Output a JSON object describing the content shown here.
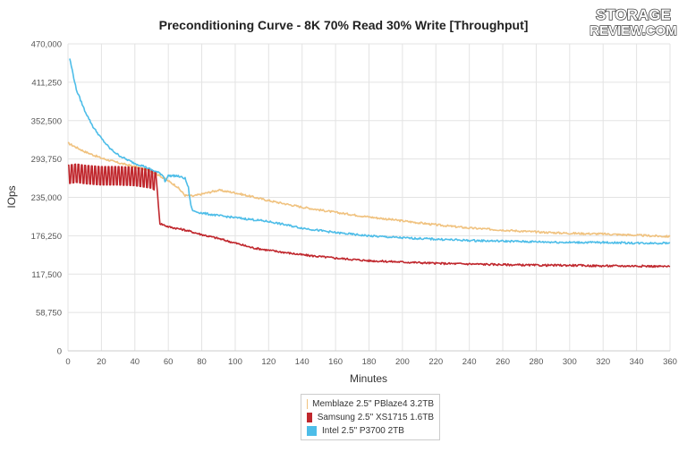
{
  "logo": {
    "text_top": "STORAGE",
    "text_bottom": "REVIEW.COM"
  },
  "chart_data": {
    "type": "line",
    "title": "Preconditioning Curve - 8K 70% Read 30% Write [Throughput]",
    "xlabel": "Minutes",
    "ylabel": "IOps",
    "xlim": [
      0,
      360
    ],
    "ylim": [
      0,
      470000
    ],
    "x_ticks": [
      "0",
      "20",
      "40",
      "60",
      "80",
      "100",
      "120",
      "140",
      "160",
      "180",
      "200",
      "220",
      "240",
      "260",
      "280",
      "300",
      "320",
      "340",
      "360"
    ],
    "y_ticks": [
      "0",
      "58,750",
      "117,500",
      "176,250",
      "235,000",
      "293,750",
      "352,500",
      "411,250",
      "470,000"
    ],
    "grid": true,
    "legend_position": "bottom",
    "series": [
      {
        "name": "Memblaze 2.5\" PBlaze4 3.2TB",
        "color": "#f0c27f",
        "x": [
          0,
          10,
          20,
          30,
          40,
          50,
          55,
          60,
          65,
          70,
          75,
          80,
          85,
          90,
          100,
          110,
          120,
          140,
          160,
          180,
          200,
          220,
          240,
          260,
          280,
          300,
          320,
          340,
          360
        ],
        "y": [
          318000,
          305000,
          295000,
          288000,
          282000,
          275000,
          268000,
          260000,
          252000,
          238000,
          237000,
          240000,
          243000,
          246000,
          242000,
          236000,
          230000,
          220000,
          212000,
          205000,
          199000,
          193000,
          188000,
          185000,
          182000,
          180000,
          179000,
          177000,
          175000
        ]
      },
      {
        "name": "Samsung 2.5\" XS1715 1.6TB",
        "color": "#c0272d",
        "x": [
          0,
          5,
          10,
          20,
          30,
          40,
          50,
          53,
          54,
          55,
          60,
          70,
          80,
          90,
          100,
          110,
          120,
          140,
          160,
          180,
          200,
          220,
          240,
          260,
          280,
          300,
          320,
          340,
          360
        ],
        "y": [
          270000,
          272000,
          270000,
          268000,
          268000,
          267000,
          263000,
          258000,
          225000,
          195000,
          190000,
          185000,
          178000,
          172000,
          165000,
          158000,
          154000,
          147000,
          142000,
          138000,
          136000,
          134000,
          133000,
          132000,
          131000,
          131000,
          130000,
          130000,
          129000
        ]
      },
      {
        "name": "Intel 2.5\" P3700 2TB",
        "color": "#4dbde8",
        "x": [
          1,
          5,
          10,
          15,
          20,
          25,
          30,
          35,
          40,
          45,
          50,
          55,
          57,
          58,
          60,
          65,
          70,
          72,
          73,
          74,
          75,
          80,
          90,
          100,
          110,
          120,
          130,
          140,
          160,
          180,
          200,
          220,
          240,
          260,
          280,
          300,
          320,
          340,
          360
        ],
        "y": [
          448000,
          400000,
          368000,
          343000,
          325000,
          310000,
          300000,
          293000,
          287000,
          283000,
          277000,
          272000,
          268000,
          260000,
          268000,
          268000,
          264000,
          250000,
          230000,
          218000,
          214000,
          211000,
          207000,
          204000,
          201000,
          198000,
          193000,
          188000,
          181000,
          176000,
          173000,
          171000,
          169000,
          168000,
          167000,
          166000,
          166000,
          165000,
          165000
        ]
      }
    ]
  }
}
